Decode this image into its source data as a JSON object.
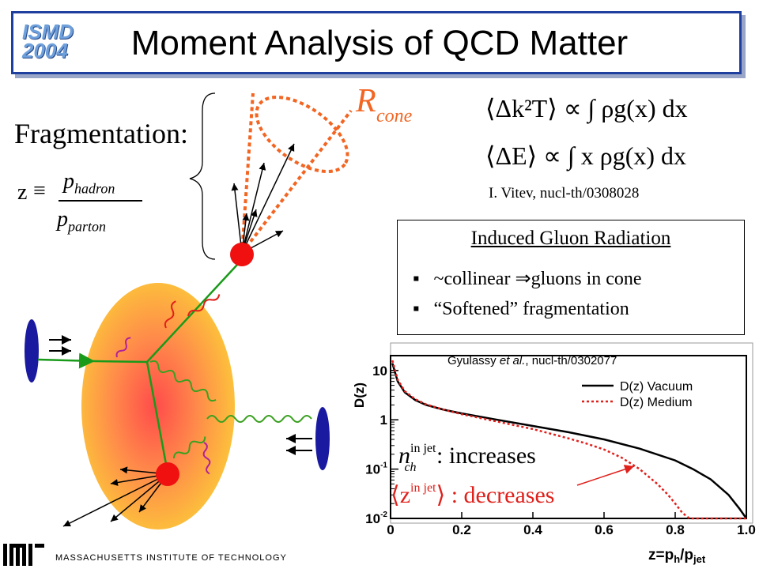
{
  "slide": {
    "title": "Moment Analysis of QCD Matter",
    "logo_lines": [
      "ISMD",
      "2004"
    ],
    "footer": "MASSACHUSETTS INSTITUTE OF TECHNOLOGY"
  },
  "fragmentation": {
    "label": "Fragmentation:",
    "z_symbol": "z",
    "equiv": "≡",
    "numerator": "p",
    "numerator_sub": "hadron",
    "denominator": "p",
    "denominator_sub": "parton"
  },
  "cone": {
    "label": "R",
    "sub": "cone"
  },
  "equations": {
    "eq1": "⟨Δk²T⟩ ∝ ∫ ρg(x) dx",
    "eq2": "⟨ΔE⟩ ∝ ∫ x ρg(x) dx",
    "citation": "I. Vitev, nucl-th/0308028"
  },
  "radiation": {
    "title": "Induced Gluon Radiation",
    "bullets": [
      "~collinear ⇒gluons in cone",
      "“Softened” fragmentation"
    ],
    "bullet_symbol": "▪"
  },
  "annotations": {
    "nch": "n",
    "nch_sup": "in jet",
    "nch_sub": "ch",
    "nch_text": " :  increases",
    "zmean": "z",
    "zmean_sup": "in jet",
    "zmean_text": " :  decreases"
  },
  "chart_data": {
    "type": "line",
    "title": "",
    "citation_prefix": "Gyulassy ",
    "citation_italic": "et al.",
    "citation_suffix": ", nucl-th/0302077",
    "xlabel": "z=p",
    "xlabel_sub1": "h",
    "xlabel_mid": "/p",
    "xlabel_sub2": "jet",
    "ylabel": "D(z)",
    "xlim": [
      0,
      1.0
    ],
    "ylim": [
      0.01,
      20
    ],
    "y_scale": "log",
    "x_ticks": [
      "0",
      "0.2",
      "0.4",
      "0.6",
      "0.8",
      "1.0"
    ],
    "y_ticks": [
      {
        "value": 10,
        "label": "10"
      },
      {
        "value": 1,
        "label": "1"
      },
      {
        "value": 0.1,
        "label": "10",
        "sup": "-1"
      },
      {
        "value": 0.01,
        "label": "10",
        "sup": "-2"
      }
    ],
    "legend_position": "top-right",
    "series": [
      {
        "name": "D(z) Vacuum",
        "color": "#000000",
        "dash": "solid",
        "x": [
          0.005,
          0.02,
          0.04,
          0.07,
          0.1,
          0.15,
          0.2,
          0.3,
          0.4,
          0.5,
          0.6,
          0.7,
          0.8,
          0.85,
          0.9,
          0.95,
          0.98,
          1.0
        ],
        "y": [
          14,
          6,
          3.6,
          2.5,
          2.0,
          1.6,
          1.35,
          1.0,
          0.75,
          0.56,
          0.4,
          0.26,
          0.15,
          0.1,
          0.062,
          0.03,
          0.016,
          0.01
        ]
      },
      {
        "name": "D(z) Medium",
        "color": "#e0201b",
        "dash": "dashed",
        "x": [
          0.005,
          0.02,
          0.04,
          0.07,
          0.1,
          0.15,
          0.2,
          0.3,
          0.4,
          0.5,
          0.55,
          0.6,
          0.65,
          0.7,
          0.75,
          0.78,
          0.8,
          0.82,
          0.84,
          1.0
        ],
        "y": [
          16,
          6.5,
          3.8,
          2.6,
          2.05,
          1.6,
          1.3,
          0.92,
          0.65,
          0.42,
          0.33,
          0.25,
          0.17,
          0.1,
          0.05,
          0.03,
          0.02,
          0.013,
          0.01,
          0.01
        ]
      }
    ]
  },
  "colors": {
    "title_border": "#1f3f9f",
    "cone": "#f26522",
    "green_line": "#1a9a1a",
    "gluon_green": "#3aa020",
    "gluon_red": "#e0201b",
    "gluon_purple": "#b0209b",
    "hadron": "#f01010",
    "beam": "#1a1aa0"
  }
}
